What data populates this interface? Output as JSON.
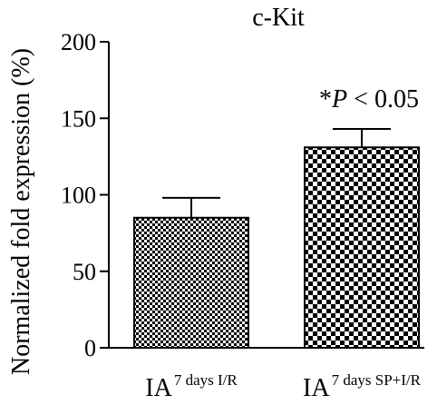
{
  "chart_data": {
    "type": "bar",
    "title": "c-Kit",
    "ylabel": "Normalized fold expression (%)",
    "xlabel": "",
    "ylim": [
      0,
      200
    ],
    "yticks": [
      0,
      50,
      100,
      150,
      200
    ],
    "grid": false,
    "categories": [
      {
        "base": "IA",
        "sup": "7 days I/R"
      },
      {
        "base": "IA",
        "sup": "7 days SP+I/R"
      }
    ],
    "values": [
      85,
      131
    ],
    "errors": [
      13,
      12
    ],
    "bar_patterns": [
      "fine-checkerboard",
      "coarse-checkerboard"
    ],
    "annotation": {
      "star": "*",
      "p": "P",
      "rest": " < 0.05"
    }
  }
}
